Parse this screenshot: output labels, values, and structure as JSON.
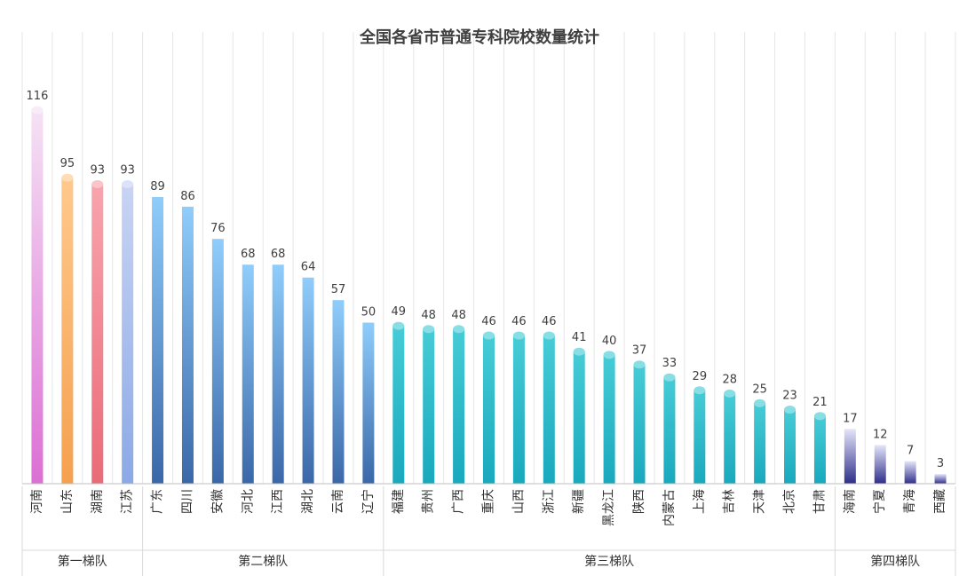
{
  "chart_data": {
    "type": "bar",
    "title": "全国各省市普通专科院校数量统计",
    "xlabel": "",
    "ylabel": "",
    "ylim": [
      0,
      116
    ],
    "grid": "vertical",
    "categories": [
      "河南",
      "山东",
      "湖南",
      "江苏",
      "广东",
      "四川",
      "安徽",
      "河北",
      "江西",
      "湖北",
      "云南",
      "辽宁",
      "福建",
      "贵州",
      "广西",
      "重庆",
      "山西",
      "浙江",
      "新疆",
      "黑龙江",
      "陕西",
      "内蒙古",
      "上海",
      "吉林",
      "天津",
      "北京",
      "甘肃",
      "海南",
      "宁夏",
      "青海",
      "西藏"
    ],
    "values": [
      116,
      95,
      93,
      93,
      89,
      86,
      76,
      68,
      68,
      64,
      57,
      50,
      49,
      48,
      48,
      46,
      46,
      46,
      41,
      40,
      37,
      33,
      29,
      28,
      25,
      23,
      21,
      17,
      12,
      7,
      3
    ],
    "groups": [
      {
        "label": "第一梯队",
        "count": 4
      },
      {
        "label": "第二梯队",
        "count": 8
      },
      {
        "label": "第三梯队",
        "count": 15
      },
      {
        "label": "第四梯队",
        "count": 4
      }
    ],
    "colors": {
      "河南": [
        "#f5e2f5",
        "#dc6fd4"
      ],
      "山东": [
        "#ffc98c",
        "#f5a04f"
      ],
      "湖南": [
        "#f8a4ad",
        "#ea6b78"
      ],
      "江苏": [
        "#c9d4f4",
        "#8ba9e6"
      ],
      "group2": [
        "#8fcdfb",
        "#3a67a8"
      ],
      "group3": [
        "#46ccd6",
        "#19a8bd"
      ],
      "group4": [
        "#e4e4fa",
        "#2e2e8a"
      ]
    }
  }
}
